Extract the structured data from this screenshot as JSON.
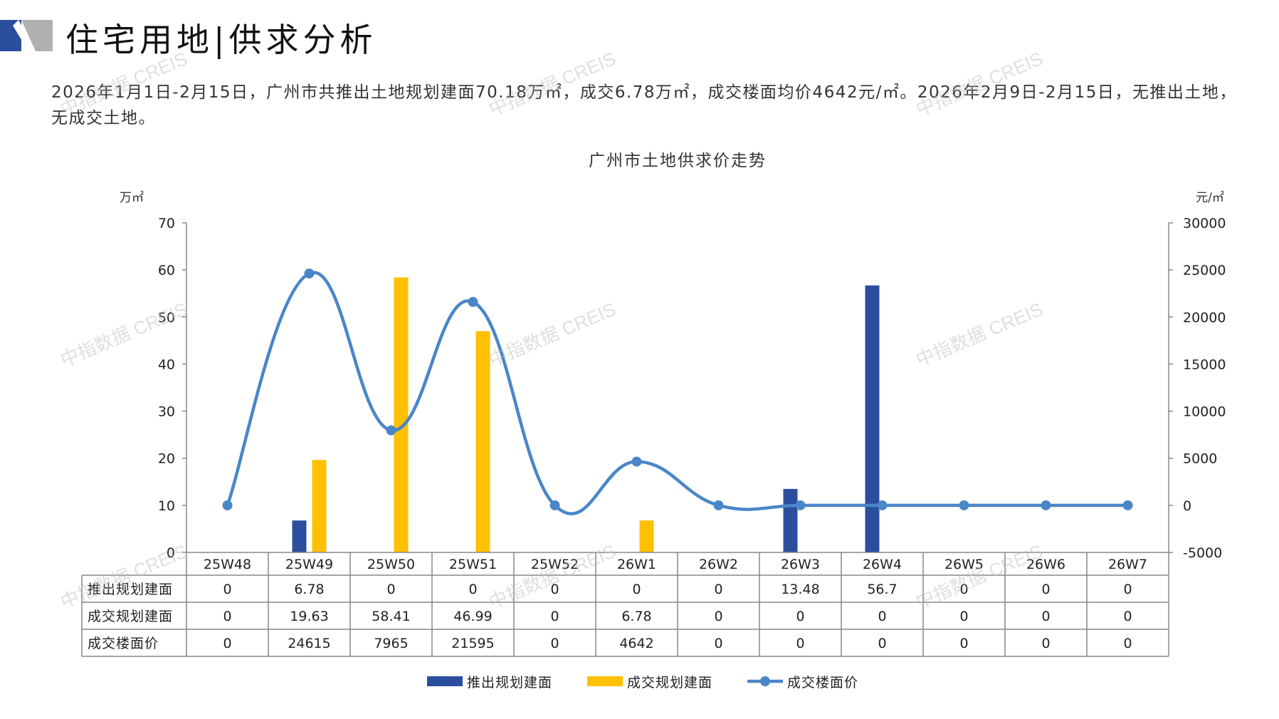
{
  "page": {
    "title": "住宅用地|供求分析",
    "summary": "2026年1月1日-2月15日，广州市共推出土地规划建面70.18万㎡，成交6.78万㎡，成交楼面均价4642元/㎡。2026年2月9日-2月15日，无推出土地，无成交土地。",
    "watermark": "中指数据 CREIS"
  },
  "colors": {
    "supply": "#2b4f9e",
    "transaction": "#ffc000",
    "price": "#4a86c8",
    "logo_dark": "#2b4f9e",
    "logo_gray": "#b0b0b0"
  },
  "chart_data": {
    "type": "bar",
    "title": "广州市土地供求价走势",
    "y_left_label": "万㎡",
    "y_right_label": "元/㎡",
    "y_left_range": [
      0,
      70
    ],
    "y_left_ticks": [
      0,
      10,
      20,
      30,
      40,
      50,
      60,
      70
    ],
    "y_right_range": [
      -5000,
      30000
    ],
    "y_right_ticks": [
      -5000,
      0,
      5000,
      10000,
      15000,
      20000,
      25000,
      30000
    ],
    "categories": [
      "25W48",
      "25W49",
      "25W50",
      "25W51",
      "25W52",
      "26W1",
      "26W2",
      "26W3",
      "26W4",
      "26W5",
      "26W6",
      "26W7"
    ],
    "series": [
      {
        "name": "推出规划建面",
        "kind": "bar",
        "axis": "left",
        "values": [
          0,
          6.78,
          0,
          0,
          0,
          0,
          0,
          13.48,
          56.7,
          0,
          0,
          0
        ],
        "labels": [
          "0",
          "6.78",
          "0",
          "0",
          "0",
          "0",
          "0",
          "13.48",
          "56.7",
          "0",
          "0",
          "0"
        ]
      },
      {
        "name": "成交规划建面",
        "kind": "bar",
        "axis": "left",
        "values": [
          0,
          19.63,
          58.41,
          46.99,
          0,
          6.78,
          0,
          0,
          0,
          0,
          0,
          0
        ],
        "labels": [
          "0",
          "19.63",
          "58.41",
          "46.99",
          "0",
          "6.78",
          "0",
          "0",
          "0",
          "0",
          "0",
          "0"
        ]
      },
      {
        "name": "成交楼面价",
        "kind": "line",
        "axis": "right",
        "values": [
          0,
          24615,
          7965,
          21595,
          0,
          4642,
          0,
          0,
          0,
          0,
          0,
          0
        ],
        "labels": [
          "0",
          "24615",
          "7965",
          "21595",
          "0",
          "4642",
          "0",
          "0",
          "0",
          "0",
          "0",
          "0"
        ]
      }
    ],
    "legend_position": "bottom",
    "data_table": true
  }
}
